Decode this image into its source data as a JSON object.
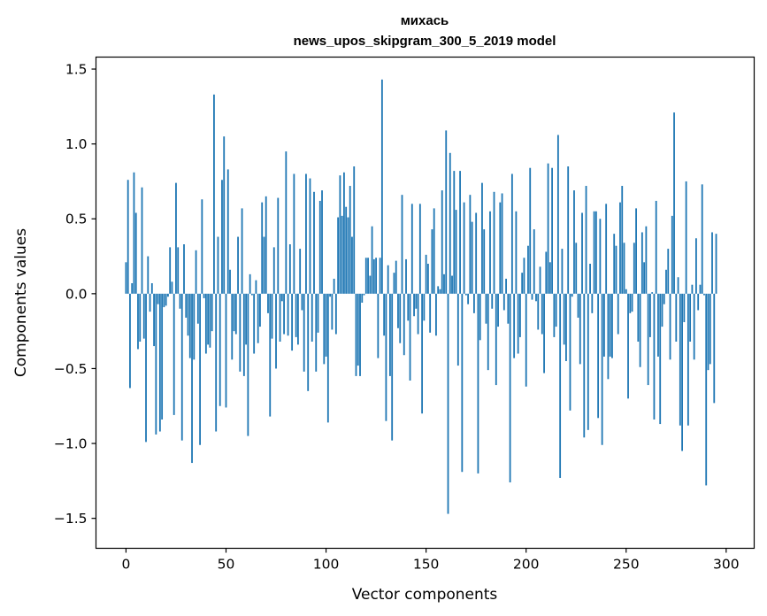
{
  "chart_data": {
    "type": "bar",
    "title_line1": "михась",
    "title_line2": "news_upos_skipgram_300_5_2019 model",
    "xlabel": "Vector components",
    "ylabel": "Components values",
    "xlim": [
      -15,
      314
    ],
    "ylim": [
      -1.7,
      1.58
    ],
    "xticks": [
      0,
      50,
      100,
      150,
      200,
      250,
      300
    ],
    "xtick_labels": [
      "0",
      "50",
      "100",
      "150",
      "200",
      "250",
      "300"
    ],
    "yticks": [
      -1.5,
      -1.0,
      -0.5,
      0.0,
      0.5,
      1.0,
      1.5
    ],
    "ytick_labels": [
      "−1.5",
      "−1.0",
      "−0.5",
      "0.0",
      "0.5",
      "1.0",
      "1.5"
    ],
    "bar_color": "#1f77b4",
    "values": [
      0.21,
      0.76,
      -0.63,
      0.07,
      0.81,
      0.54,
      -0.37,
      -0.32,
      0.71,
      -0.3,
      -0.99,
      0.25,
      -0.12,
      0.07,
      -0.35,
      -0.94,
      -0.07,
      -0.92,
      -0.84,
      -0.09,
      -0.08,
      -0.02,
      0.31,
      0.08,
      -0.81,
      0.74,
      0.31,
      -0.1,
      -0.98,
      0.33,
      -0.16,
      -0.28,
      -0.43,
      -1.13,
      -0.44,
      0.29,
      -0.2,
      -1.01,
      0.63,
      -0.03,
      -0.4,
      -0.34,
      -0.36,
      -0.25,
      1.33,
      -0.92,
      0.38,
      -0.75,
      0.76,
      1.05,
      -0.76,
      0.83,
      0.16,
      -0.44,
      -0.25,
      -0.27,
      0.38,
      -0.52,
      0.57,
      -0.55,
      -0.34,
      -0.95,
      0.13,
      -0.01,
      -0.4,
      0.09,
      -0.33,
      -0.22,
      0.61,
      0.38,
      0.65,
      -0.13,
      -0.82,
      -0.3,
      0.31,
      -0.5,
      0.64,
      -0.32,
      -0.05,
      -0.27,
      0.95,
      -0.28,
      0.33,
      -0.38,
      0.8,
      -0.29,
      -0.34,
      0.3,
      -0.11,
      -0.52,
      0.8,
      -0.65,
      0.77,
      -0.32,
      0.68,
      -0.52,
      -0.26,
      0.62,
      0.69,
      -0.47,
      -0.42,
      -0.86,
      -0.02,
      -0.24,
      0.1,
      -0.27,
      0.51,
      0.79,
      0.52,
      0.81,
      0.58,
      0.51,
      0.72,
      0.38,
      0.85,
      -0.55,
      -0.48,
      -0.55,
      -0.06,
      -0.01,
      0.24,
      0.24,
      0.12,
      0.45,
      0.23,
      0.24,
      -0.43,
      0.24,
      1.43,
      -0.28,
      -0.85,
      0.19,
      -0.55,
      -0.98,
      0.14,
      0.22,
      -0.23,
      -0.33,
      0.66,
      -0.41,
      0.23,
      -0.18,
      -0.58,
      0.6,
      -0.15,
      -0.1,
      -0.27,
      0.6,
      -0.8,
      -0.18,
      0.26,
      0.2,
      -0.26,
      0.43,
      0.57,
      -0.28,
      0.05,
      0.03,
      0.69,
      0.13,
      1.09,
      -1.47,
      0.94,
      0.12,
      0.82,
      0.56,
      -0.48,
      0.82,
      -1.19,
      0.61,
      -0.01,
      -0.07,
      0.66,
      0.48,
      -0.13,
      0.54,
      -1.2,
      -0.31,
      0.74,
      0.43,
      -0.2,
      -0.51,
      0.55,
      -0.1,
      0.68,
      -0.61,
      -0.22,
      0.61,
      0.67,
      -0.11,
      0.1,
      -0.2,
      -1.26,
      0.8,
      -0.43,
      0.55,
      -0.4,
      -0.29,
      0.14,
      0.24,
      -0.62,
      0.32,
      0.84,
      -0.04,
      0.43,
      -0.05,
      -0.24,
      0.18,
      -0.27,
      -0.53,
      0.28,
      0.87,
      0.21,
      0.84,
      -0.29,
      -0.22,
      1.06,
      -1.23,
      0.3,
      -0.34,
      -0.45,
      0.85,
      -0.78,
      -0.02,
      0.69,
      0.34,
      -0.16,
      -0.47,
      0.54,
      -0.96,
      0.72,
      -0.91,
      0.2,
      -0.13,
      0.55,
      0.55,
      -0.83,
      0.5,
      -1.01,
      -0.42,
      0.6,
      -0.57,
      -0.42,
      -0.43,
      0.4,
      0.32,
      -0.27,
      0.61,
      0.72,
      0.34,
      0.03,
      -0.7,
      -0.13,
      -0.12,
      0.34,
      0.57,
      -0.32,
      -0.49,
      0.41,
      0.21,
      0.45,
      -0.61,
      -0.29,
      0.01,
      -0.84,
      0.62,
      -0.42,
      -0.87,
      -0.22,
      -0.07,
      0.16,
      0.3,
      -0.44,
      0.52,
      1.21,
      -0.32,
      0.11,
      -0.88,
      -1.05,
      -0.19,
      0.75,
      -0.88,
      -0.32,
      0.06,
      -0.44,
      0.37,
      -0.11,
      0.06,
      0.73,
      -0.01,
      -1.28,
      -0.51,
      -0.47,
      0.41,
      -0.73,
      0.4
    ]
  }
}
